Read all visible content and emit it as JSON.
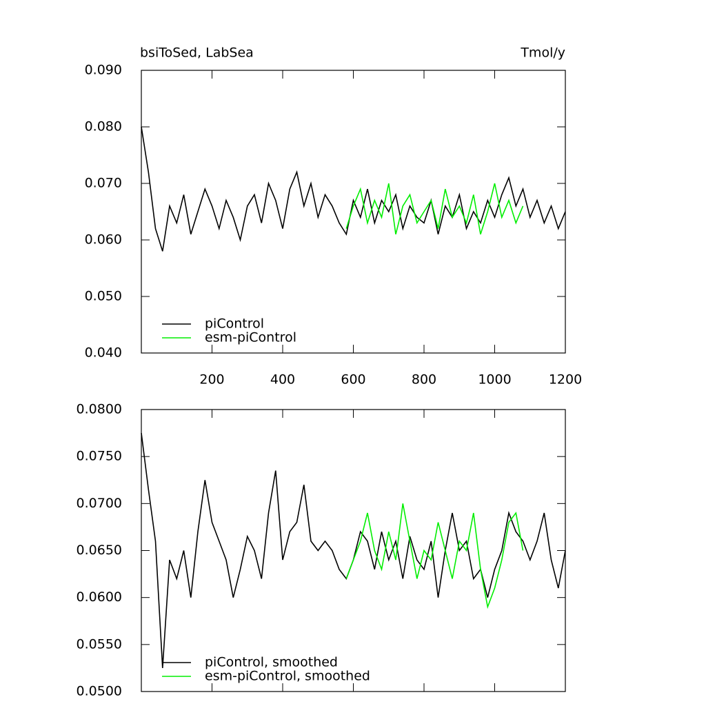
{
  "chart_data": [
    {
      "type": "line",
      "title": "bsiToSed, LabSea",
      "units": "Tmol/y",
      "x": [
        0,
        20,
        40,
        60,
        80,
        100,
        120,
        140,
        160,
        180,
        200,
        220,
        240,
        260,
        280,
        300,
        320,
        340,
        360,
        380,
        400,
        420,
        440,
        460,
        480,
        500,
        520,
        540,
        560,
        580,
        600,
        620,
        640,
        660,
        680,
        700,
        720,
        740,
        760,
        780,
        800,
        820,
        840,
        860,
        880,
        900,
        920,
        940,
        960,
        980,
        1000,
        1020,
        1040,
        1060,
        1080,
        1100,
        1120,
        1140,
        1160,
        1180,
        1200
      ],
      "series": [
        {
          "name": "piControl",
          "color": "#000000",
          "values": [
            0.08,
            0.072,
            0.062,
            0.058,
            0.066,
            0.063,
            0.068,
            0.061,
            0.065,
            0.069,
            0.066,
            0.062,
            0.067,
            0.064,
            0.06,
            0.066,
            0.068,
            0.063,
            0.07,
            0.067,
            0.062,
            0.069,
            0.072,
            0.066,
            0.07,
            0.064,
            0.068,
            0.066,
            0.063,
            0.061,
            0.067,
            0.064,
            0.069,
            0.063,
            0.067,
            0.065,
            0.068,
            0.062,
            0.066,
            0.064,
            0.063,
            0.067,
            0.061,
            0.066,
            0.064,
            0.068,
            0.062,
            0.065,
            0.063,
            0.067,
            0.064,
            0.068,
            0.071,
            0.066,
            0.069,
            0.064,
            0.067,
            0.063,
            0.066,
            0.062,
            0.065
          ]
        },
        {
          "name": "esm-piControl",
          "color": "#00ee00",
          "values": [
            null,
            null,
            null,
            null,
            null,
            null,
            null,
            null,
            null,
            null,
            null,
            null,
            null,
            null,
            null,
            null,
            null,
            null,
            null,
            null,
            null,
            null,
            null,
            null,
            null,
            null,
            null,
            null,
            null,
            0.062,
            0.066,
            0.069,
            0.063,
            0.067,
            0.064,
            0.07,
            0.061,
            0.066,
            0.068,
            0.063,
            0.065,
            0.067,
            0.062,
            0.069,
            0.064,
            0.066,
            0.063,
            0.068,
            0.061,
            0.065,
            0.07,
            0.064,
            0.067,
            0.063,
            0.066,
            null,
            null,
            null,
            null,
            null,
            null
          ]
        }
      ],
      "xlim": [
        0,
        1200
      ],
      "xticks": [
        200,
        400,
        600,
        800,
        1000,
        1200
      ],
      "xtick_labels": true,
      "ylim": [
        0.04,
        0.09
      ],
      "yticks": [
        {
          "value": 0.04,
          "label": "0.040"
        },
        {
          "value": 0.05,
          "label": "0.050"
        },
        {
          "value": 0.06,
          "label": "0.060"
        },
        {
          "value": 0.07,
          "label": "0.070"
        },
        {
          "value": 0.08,
          "label": "0.080"
        },
        {
          "value": 0.09,
          "label": "0.090"
        }
      ],
      "legend": "lower left"
    },
    {
      "type": "line",
      "x": [
        0,
        20,
        40,
        60,
        80,
        100,
        120,
        140,
        160,
        180,
        200,
        220,
        240,
        260,
        280,
        300,
        320,
        340,
        360,
        380,
        400,
        420,
        440,
        460,
        480,
        500,
        520,
        540,
        560,
        580,
        600,
        620,
        640,
        660,
        680,
        700,
        720,
        740,
        760,
        780,
        800,
        820,
        840,
        860,
        880,
        900,
        920,
        940,
        960,
        980,
        1000,
        1020,
        1040,
        1060,
        1080,
        1100,
        1120,
        1140,
        1160,
        1180,
        1200
      ],
      "series": [
        {
          "name": "piControl, smoothed",
          "color": "#000000",
          "values": [
            0.0775,
            0.0715,
            0.066,
            0.0525,
            0.064,
            0.062,
            0.065,
            0.06,
            0.067,
            0.0725,
            0.068,
            0.066,
            0.064,
            0.06,
            0.063,
            0.0665,
            0.065,
            0.062,
            0.069,
            0.0735,
            0.064,
            0.067,
            0.068,
            0.072,
            0.066,
            0.065,
            0.066,
            0.065,
            0.063,
            0.062,
            0.064,
            0.067,
            0.066,
            0.063,
            0.067,
            0.064,
            0.066,
            0.062,
            0.0665,
            0.064,
            0.063,
            0.066,
            0.06,
            0.065,
            0.069,
            0.065,
            0.066,
            0.062,
            0.063,
            0.06,
            0.063,
            0.065,
            0.069,
            0.067,
            0.066,
            0.064,
            0.066,
            0.069,
            0.064,
            0.061,
            0.065
          ]
        },
        {
          "name": "esm-piControl, smoothed",
          "color": "#00ee00",
          "values": [
            null,
            null,
            null,
            null,
            null,
            null,
            null,
            null,
            null,
            null,
            null,
            null,
            null,
            null,
            null,
            null,
            null,
            null,
            null,
            null,
            null,
            null,
            null,
            null,
            null,
            null,
            null,
            null,
            null,
            0.062,
            0.064,
            0.066,
            0.069,
            0.065,
            0.063,
            0.067,
            0.064,
            0.07,
            0.066,
            0.062,
            0.065,
            0.064,
            0.068,
            0.065,
            0.062,
            0.066,
            0.065,
            0.069,
            0.063,
            0.059,
            0.061,
            0.064,
            0.068,
            0.069,
            0.065,
            null,
            null,
            null,
            null,
            null,
            null
          ]
        }
      ],
      "xlim": [
        0,
        1200
      ],
      "xticks": [
        200,
        400,
        600,
        800,
        1000,
        1200
      ],
      "xtick_labels": false,
      "ylim": [
        0.05,
        0.08
      ],
      "yticks": [
        {
          "value": 0.05,
          "label": "0.0500"
        },
        {
          "value": 0.055,
          "label": "0.0550"
        },
        {
          "value": 0.06,
          "label": "0.0600"
        },
        {
          "value": 0.065,
          "label": "0.0650"
        },
        {
          "value": 0.07,
          "label": "0.0700"
        },
        {
          "value": 0.075,
          "label": "0.0750"
        },
        {
          "value": 0.08,
          "label": "0.0800"
        }
      ],
      "legend": "lower left"
    }
  ]
}
